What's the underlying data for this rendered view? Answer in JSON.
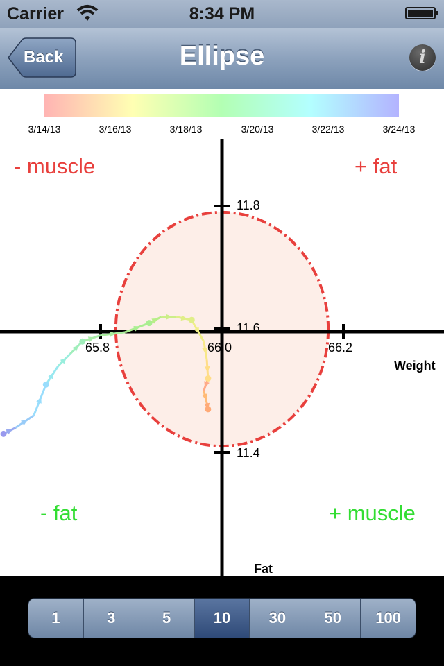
{
  "status": {
    "carrier": "Carrier",
    "time": "8:34 PM"
  },
  "nav": {
    "back_label": "Back",
    "title": "Ellipse",
    "info_label": "i"
  },
  "legend": {
    "dates": [
      "3/14/13",
      "3/16/13",
      "3/18/13",
      "3/20/13",
      "3/22/13",
      "3/24/13"
    ]
  },
  "quadrants": {
    "top_left": "- muscle",
    "top_right": "+ fat",
    "bottom_left": "- fat",
    "bottom_right": "+ muscle"
  },
  "colors": {
    "quadrant_red": "#e8403d",
    "quadrant_green": "#33dd33",
    "ellipse_stroke": "#e8403d",
    "ellipse_fill": "#fdeee8"
  },
  "chart_data": {
    "type": "scatter",
    "xlabel": "Weight",
    "ylabel": "Fat",
    "x_ticks": [
      "65.8",
      "66.0",
      "66.2"
    ],
    "y_ticks": [
      "11.8",
      "11.6",
      "11.4"
    ],
    "ellipse": {
      "center_x": 66.0,
      "center_y": 11.6,
      "radius_x": 0.175,
      "radius_y": 0.19
    },
    "x_range_visible": [
      65.64,
      66.37
    ],
    "y_range_visible": [
      11.31,
      11.92
    ],
    "points": [
      {
        "x": 65.64,
        "y": 11.43,
        "color": "#9999ee"
      },
      {
        "x": 65.66,
        "y": 11.44,
        "color": "#99aaf0"
      },
      {
        "x": 65.69,
        "y": 11.46,
        "color": "#99ccf8"
      },
      {
        "x": 65.71,
        "y": 11.51,
        "color": "#99ddfc"
      },
      {
        "x": 65.73,
        "y": 11.54,
        "color": "#99e8f0"
      },
      {
        "x": 65.75,
        "y": 11.56,
        "color": "#99eedd"
      },
      {
        "x": 65.77,
        "y": 11.58,
        "color": "#a0eebb"
      },
      {
        "x": 65.8,
        "y": 11.59,
        "color": "#aaeeaa"
      },
      {
        "x": 65.84,
        "y": 11.595,
        "color": "#aaeea0"
      },
      {
        "x": 65.88,
        "y": 11.61,
        "color": "#aaee90"
      },
      {
        "x": 65.9,
        "y": 11.62,
        "color": "#b8ee88"
      },
      {
        "x": 65.925,
        "y": 11.62,
        "color": "#ccee88"
      },
      {
        "x": 65.95,
        "y": 11.615,
        "color": "#e0ee88"
      },
      {
        "x": 65.97,
        "y": 11.58,
        "color": "#f0ee88"
      },
      {
        "x": 65.975,
        "y": 11.55,
        "color": "#f8e888"
      },
      {
        "x": 65.977,
        "y": 11.52,
        "color": "#ffdd88"
      },
      {
        "x": 65.97,
        "y": 11.5,
        "color": "#ffaa88"
      },
      {
        "x": 65.975,
        "y": 11.48,
        "color": "#ffbb77"
      },
      {
        "x": 65.977,
        "y": 11.47,
        "color": "#ffaa77"
      }
    ]
  },
  "periods": [
    {
      "label": "1",
      "active": false
    },
    {
      "label": "3",
      "active": false
    },
    {
      "label": "5",
      "active": false
    },
    {
      "label": "10",
      "active": true
    },
    {
      "label": "30",
      "active": false
    },
    {
      "label": "50",
      "active": false
    },
    {
      "label": "100",
      "active": false
    }
  ]
}
